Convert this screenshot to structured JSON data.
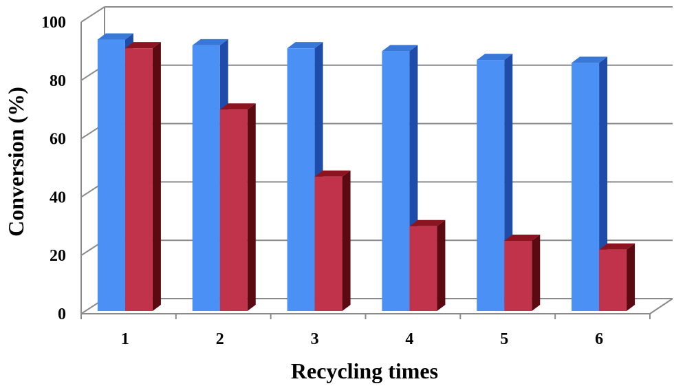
{
  "chart_data": {
    "type": "bar",
    "categories": [
      "1",
      "2",
      "3",
      "4",
      "5",
      "6"
    ],
    "series": [
      {
        "values": [
          94,
          92,
          91,
          90,
          87,
          86
        ],
        "color": "#4A90F5",
        "side_color": "#1E4CA8",
        "top_color": "#3A78D8"
      },
      {
        "values": [
          91,
          70,
          47,
          30,
          25,
          22
        ],
        "color": "#C0334A",
        "side_color": "#5A0A10",
        "top_color": "#8C1420"
      }
    ],
    "xlabel": "Recycling times",
    "ylabel": "Conversion (%)",
    "ylim": [
      0,
      100
    ],
    "yticks": [
      "0",
      "20",
      "40",
      "60",
      "80",
      "100"
    ],
    "grid": true
  }
}
